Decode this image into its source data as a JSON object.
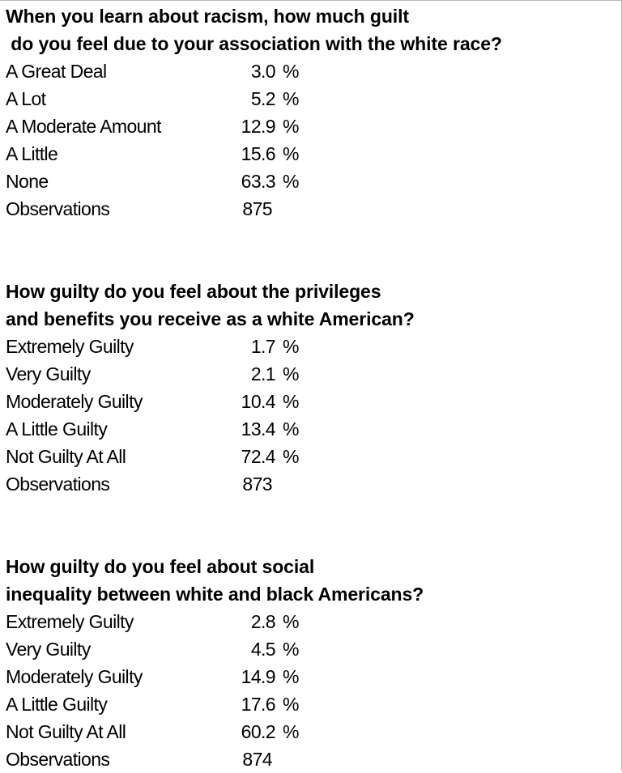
{
  "chart_data": [
    {
      "type": "table",
      "title_lines": [
        "When you learn about racism, how much guilt",
        " do you feel due to your association with the white race?"
      ],
      "unit": "%",
      "rows": [
        {
          "label": "A Great Deal",
          "value": "3.0"
        },
        {
          "label": "A Lot",
          "value": "5.2"
        },
        {
          "label": "A Moderate Amount",
          "value": "12.9"
        },
        {
          "label": "A Little",
          "value": "15.6"
        },
        {
          "label": "None",
          "value": "63.3"
        }
      ],
      "observations_label": "Observations",
      "observations": "875"
    },
    {
      "type": "table",
      "title_lines": [
        "How guilty do you feel about the privileges",
        "and benefits you receive as a white American?"
      ],
      "unit": "%",
      "rows": [
        {
          "label": "Extremely Guilty",
          "value": "1.7"
        },
        {
          "label": "Very Guilty",
          "value": "2.1"
        },
        {
          "label": "Moderately Guilty",
          "value": "10.4"
        },
        {
          "label": "A Little Guilty",
          "value": "13.4"
        },
        {
          "label": "Not Guilty At All",
          "value": "72.4"
        }
      ],
      "observations_label": "Observations",
      "observations": "873"
    },
    {
      "type": "table",
      "title_lines": [
        "How guilty do you feel about social",
        "inequality between white and black Americans?"
      ],
      "unit": "%",
      "rows": [
        {
          "label": "Extremely Guilty",
          "value": "2.8"
        },
        {
          "label": "Very Guilty",
          "value": "4.5"
        },
        {
          "label": "Moderately Guilty",
          "value": "14.9"
        },
        {
          "label": "A Little Guilty",
          "value": "17.6"
        },
        {
          "label": "Not Guilty At All",
          "value": "60.2"
        }
      ],
      "observations_label": "Observations",
      "observations": "874"
    }
  ]
}
